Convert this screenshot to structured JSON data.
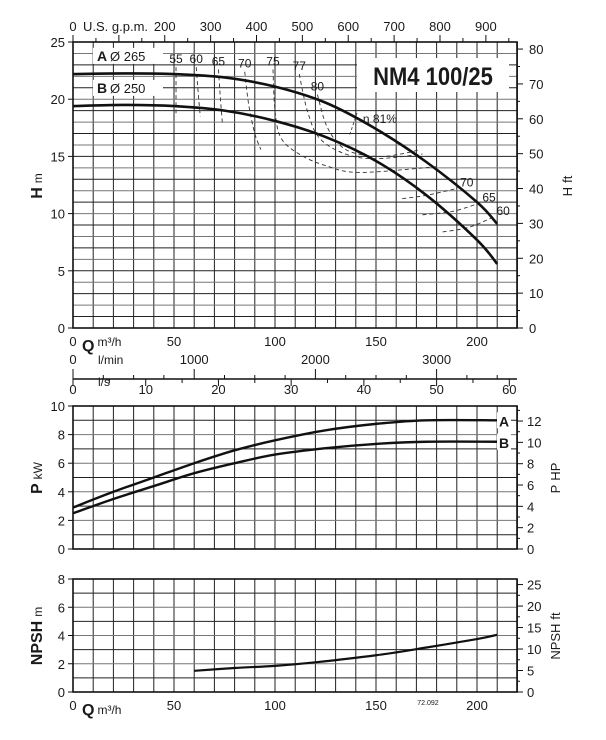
{
  "chart_data": [
    {
      "type": "line",
      "title": "NM4 100/25",
      "xlabel": "Q",
      "xunit": "m³/h",
      "ylabel": "H",
      "yunit": "m",
      "y2label": "H",
      "y2unit": "ft",
      "top_axis_label": "U.S. g.p.m.",
      "xlim": [
        0,
        220
      ],
      "ylim": [
        0,
        25
      ],
      "y2lim": [
        0,
        82
      ],
      "grid": true,
      "x_ticks": [
        "0",
        "50",
        "100",
        "150",
        "200"
      ],
      "y_ticks": [
        "0",
        "5",
        "10",
        "15",
        "20",
        "25"
      ],
      "y2_ticks": [
        "0",
        "10",
        "20",
        "30",
        "40",
        "50",
        "60",
        "70",
        "80"
      ],
      "gpm_ticks": [
        "0",
        "200",
        "300",
        "400",
        "500",
        "600",
        "700",
        "800",
        "900"
      ],
      "lmin_label": "l/min",
      "lmin_ticks": [
        "0",
        "1000",
        "2000",
        "3000"
      ],
      "ls_label": "l/s",
      "ls_ticks": [
        "0",
        "10",
        "20",
        "30",
        "40",
        "50",
        "60"
      ],
      "series": [
        {
          "name": "A",
          "label_letter": "A",
          "label_dia": "Ø  265",
          "x": [
            0,
            25,
            50,
            75,
            100,
            125,
            150,
            175,
            200,
            210
          ],
          "y": [
            22.2,
            22.25,
            22.2,
            21.9,
            21.1,
            19.7,
            17.4,
            14.5,
            11.0,
            9.1
          ]
        },
        {
          "name": "B",
          "label_letter": "B",
          "label_dia": "Ø  250",
          "x": [
            0,
            25,
            50,
            75,
            100,
            125,
            150,
            175,
            200,
            210
          ],
          "y": [
            19.4,
            19.5,
            19.4,
            19.0,
            18.1,
            16.7,
            14.6,
            11.6,
            7.7,
            5.6
          ]
        }
      ],
      "efficiency_lines": [
        {
          "label": "55",
          "x": [
            51,
            51,
            51
          ],
          "y": [
            22.8,
            20.5,
            18.5
          ]
        },
        {
          "label": "60",
          "x": [
            61,
            62,
            63
          ],
          "y": [
            22.8,
            20.5,
            18.5
          ]
        },
        {
          "label": "65",
          "x": [
            72,
            73,
            74
          ],
          "y": [
            22.6,
            20,
            17.8
          ]
        },
        {
          "label": "70",
          "x": [
            85,
            87,
            90,
            93
          ],
          "y": [
            22.4,
            19.5,
            17,
            15.6
          ]
        },
        {
          "label": "75",
          "x": [
            99,
            100,
            103,
            112,
            125,
            142,
            180
          ],
          "y": [
            22.6,
            19,
            16.6,
            15.2,
            14.2,
            13.6,
            14.1
          ]
        },
        {
          "label": "77",
          "x": [
            112,
            116,
            122,
            135,
            150,
            173
          ],
          "y": [
            22.2,
            19,
            16.6,
            15.2,
            14.8,
            15.2
          ]
        },
        {
          "label": "80",
          "x": [
            121,
            126,
            135,
            150,
            162,
            172
          ],
          "y": [
            20.4,
            17.5,
            15.6,
            15.0,
            15.2,
            15.6
          ]
        },
        {
          "label": "70",
          "x": [
            163,
            175,
            190
          ],
          "y": [
            11.3,
            11.6,
            12.2
          ]
        },
        {
          "label": "65",
          "x": [
            173,
            188,
            201
          ],
          "y": [
            9.9,
            10.2,
            10.9
          ]
        },
        {
          "label": "60",
          "x": [
            183,
            196,
            208
          ],
          "y": [
            8.4,
            8.8,
            9.7
          ]
        }
      ],
      "efficiency_peak_label": "η 81%",
      "drawing_code": "72.092"
    },
    {
      "type": "line",
      "xlabel": "Q",
      "ylabel": "P",
      "yunit": "kW",
      "y2label": "P",
      "y2unit": "HP",
      "xlim": [
        0,
        220
      ],
      "ylim": [
        0,
        10
      ],
      "y2lim": [
        0,
        13.4
      ],
      "y_ticks": [
        "0",
        "2",
        "4",
        "6",
        "8",
        "10"
      ],
      "y2_ticks": [
        "0",
        "2",
        "4",
        "6",
        "8",
        "10",
        "12"
      ],
      "series": [
        {
          "name": "A",
          "x": [
            0,
            20,
            40,
            60,
            80,
            100,
            125,
            150,
            175,
            210
          ],
          "y": [
            2.9,
            4.0,
            5.0,
            6.0,
            6.9,
            7.6,
            8.3,
            8.75,
            9.0,
            9.0
          ]
        },
        {
          "name": "B",
          "x": [
            0,
            20,
            40,
            60,
            80,
            100,
            125,
            150,
            175,
            210
          ],
          "y": [
            2.5,
            3.5,
            4.4,
            5.3,
            6.0,
            6.6,
            7.05,
            7.35,
            7.5,
            7.5
          ]
        }
      ]
    },
    {
      "type": "line",
      "xlabel": "Q",
      "xunit": "m³/h",
      "ylabel": "NPSH",
      "yunit": "m",
      "y2label": "NPSH",
      "y2unit": "ft",
      "xlim": [
        0,
        220
      ],
      "ylim": [
        0,
        8
      ],
      "y2lim": [
        0,
        26.2
      ],
      "x_ticks": [
        "0",
        "50",
        "100",
        "150",
        "200"
      ],
      "y_ticks": [
        "0",
        "2",
        "4",
        "6",
        "8"
      ],
      "y2_ticks": [
        "0",
        "5",
        "10",
        "15",
        "20",
        "25"
      ],
      "series": [
        {
          "name": "NPSH",
          "x": [
            60,
            80,
            100,
            120,
            150,
            175,
            200,
            210
          ],
          "y": [
            1.5,
            1.7,
            1.85,
            2.1,
            2.6,
            3.15,
            3.75,
            4.05
          ]
        }
      ]
    }
  ]
}
